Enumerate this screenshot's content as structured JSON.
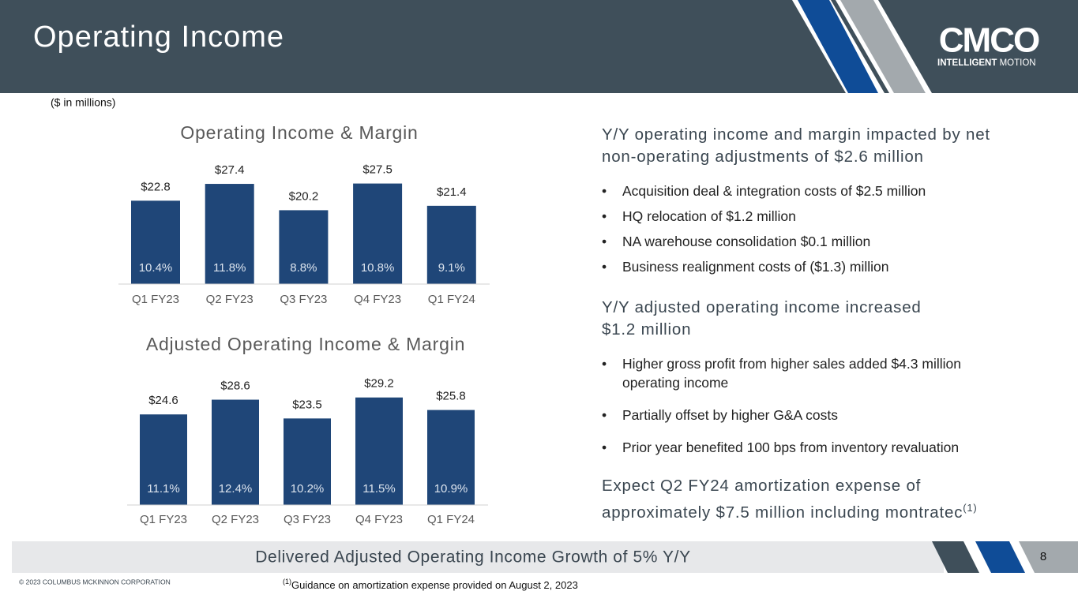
{
  "header": {
    "title": "Operating Income"
  },
  "logo": {
    "mark": "CMCO",
    "tagline_bold": "INTELLIGENT",
    "tagline": "MOTION"
  },
  "units_note": "($ in millions)",
  "chart_data": [
    {
      "type": "bar",
      "title": "Operating Income & Margin",
      "categories": [
        "Q1 FY23",
        "Q2 FY23",
        "Q3 FY23",
        "Q4 FY23",
        "Q1 FY24"
      ],
      "values": [
        22.8,
        27.4,
        20.2,
        27.5,
        21.4
      ],
      "value_labels": [
        "$22.8",
        "$27.4",
        "$20.2",
        "$27.5",
        "$21.4"
      ],
      "annotations": [
        "10.4%",
        "11.8%",
        "8.8%",
        "10.8%",
        "9.1%"
      ],
      "color": "#1f4678",
      "ylim": [
        0,
        30
      ]
    },
    {
      "type": "bar",
      "title": "Adjusted Operating Income & Margin",
      "categories": [
        "Q1 FY23",
        "Q2 FY23",
        "Q3 FY23",
        "Q4 FY23",
        "Q1 FY24"
      ],
      "values": [
        24.6,
        28.6,
        23.5,
        29.2,
        25.8
      ],
      "value_labels": [
        "$24.6",
        "$28.6",
        "$23.5",
        "$29.2",
        "$25.8"
      ],
      "annotations": [
        "11.1%",
        "12.4%",
        "10.2%",
        "11.5%",
        "10.9%"
      ],
      "color": "#1f4678",
      "ylim": [
        0,
        30
      ]
    }
  ],
  "sections": [
    {
      "heading": [
        "Y/Y operating income and margin impacted by net",
        "non-operating adjustments of $2.6 million"
      ],
      "bullets": [
        "Acquisition deal & integration costs of $2.5 million",
        "HQ relocation of $1.2 million",
        "NA warehouse consolidation $0.1 million",
        "Business realignment costs of ($1.3) million"
      ]
    },
    {
      "heading": [
        "Y/Y adjusted operating income increased",
        "$1.2 million"
      ],
      "bullets": [
        "Higher gross profit from higher sales added $4.3 million operating income",
        "Partially offset by higher G&A costs",
        "Prior year benefited 100 bps from inventory revaluation"
      ]
    },
    {
      "heading": [
        "Expect Q2 FY24 amortization expense of",
        "approximately $7.5 million including montratec"
      ],
      "note_ref": "(1)"
    }
  ],
  "bullet_symbol": "•",
  "banner": "Delivered Adjusted Operating Income Growth of 5% Y/Y",
  "page_number": "8",
  "copyright": "© 2023 COLUMBUS MCKINNON CORPORATION",
  "footnote": {
    "ref": "(1)",
    "text": "Guidance on amortization expense provided on August 2, 2023"
  }
}
